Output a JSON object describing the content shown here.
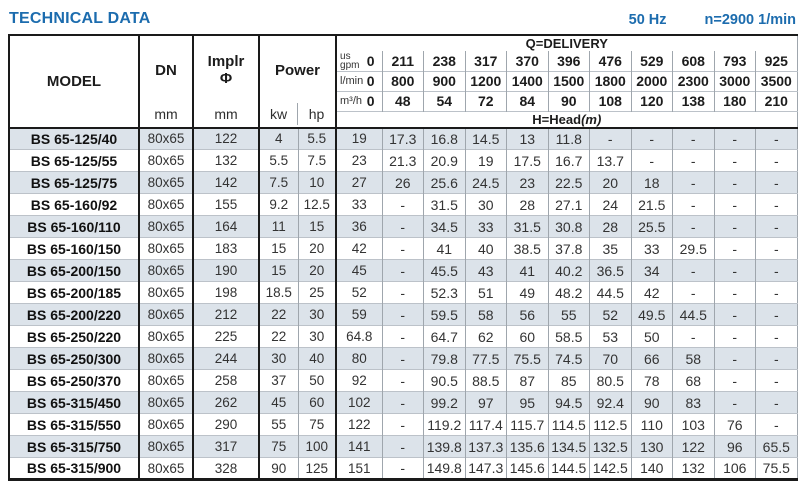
{
  "header": {
    "title": "TECHNICAL DATA",
    "frequency": "50 Hz",
    "speed": "n=2900 1/min"
  },
  "colors": {
    "accent_blue": "#1c6cae",
    "row_shade": "#dce3ea"
  },
  "table": {
    "col_model": "MODEL",
    "col_dn": "DN",
    "col_implr_line1": "Implr",
    "col_implr_line2": "Φ",
    "unit_mm": "mm",
    "col_power": "Power",
    "unit_kw": "kw",
    "unit_hp": "hp",
    "delivery": {
      "title": "Q=DELIVERY",
      "head_label": "H=Head",
      "head_unit": "(m)",
      "rows": [
        {
          "unit_top": "us",
          "unit": "gpm",
          "zero": "0",
          "values": [
            "211",
            "238",
            "317",
            "370",
            "396",
            "476",
            "529",
            "608",
            "793",
            "925"
          ]
        },
        {
          "unit": "l/min",
          "zero": "0",
          "values": [
            "800",
            "900",
            "1200",
            "1400",
            "1500",
            "1800",
            "2000",
            "2300",
            "3000",
            "3500"
          ]
        },
        {
          "unit": "m³/h",
          "zero": "0",
          "values": [
            "48",
            "54",
            "72",
            "84",
            "90",
            "108",
            "120",
            "138",
            "180",
            "210"
          ]
        }
      ]
    },
    "rows": [
      {
        "model": "BS 65-125/40",
        "dn": "80x65",
        "implr": "122",
        "kw": "4",
        "hp": "5.5",
        "head": [
          "19",
          "17.3",
          "16.8",
          "14.5",
          "13",
          "11.8",
          "-",
          "-",
          "-",
          "-",
          "-"
        ]
      },
      {
        "model": "BS 65-125/55",
        "dn": "80x65",
        "implr": "132",
        "kw": "5.5",
        "hp": "7.5",
        "head": [
          "23",
          "21.3",
          "20.9",
          "19",
          "17.5",
          "16.7",
          "13.7",
          "-",
          "-",
          "-",
          "-"
        ]
      },
      {
        "model": "BS 65-125/75",
        "dn": "80x65",
        "implr": "142",
        "kw": "7.5",
        "hp": "10",
        "head": [
          "27",
          "26",
          "25.6",
          "24.5",
          "23",
          "22.5",
          "20",
          "18",
          "-",
          "-",
          "-"
        ]
      },
      {
        "model": "BS 65-160/92",
        "dn": "80x65",
        "implr": "155",
        "kw": "9.2",
        "hp": "12.5",
        "head": [
          "33",
          "-",
          "31.5",
          "30",
          "28",
          "27.1",
          "24",
          "21.5",
          "-",
          "-",
          "-"
        ]
      },
      {
        "model": "BS 65-160/110",
        "dn": "80x65",
        "implr": "164",
        "kw": "11",
        "hp": "15",
        "head": [
          "36",
          "-",
          "34.5",
          "33",
          "31.5",
          "30.8",
          "28",
          "25.5",
          "-",
          "-",
          "-"
        ]
      },
      {
        "model": "BS 65-160/150",
        "dn": "80x65",
        "implr": "183",
        "kw": "15",
        "hp": "20",
        "head": [
          "42",
          "-",
          "41",
          "40",
          "38.5",
          "37.8",
          "35",
          "33",
          "29.5",
          "-",
          "-"
        ]
      },
      {
        "model": "BS 65-200/150",
        "dn": "80x65",
        "implr": "190",
        "kw": "15",
        "hp": "20",
        "head": [
          "45",
          "-",
          "45.5",
          "43",
          "41",
          "40.2",
          "36.5",
          "34",
          "-",
          "-",
          "-"
        ]
      },
      {
        "model": "BS 65-200/185",
        "dn": "80x65",
        "implr": "198",
        "kw": "18.5",
        "hp": "25",
        "head": [
          "52",
          "-",
          "52.3",
          "51",
          "49",
          "48.2",
          "44.5",
          "42",
          "-",
          "-",
          "-"
        ]
      },
      {
        "model": "BS 65-200/220",
        "dn": "80x65",
        "implr": "212",
        "kw": "22",
        "hp": "30",
        "head": [
          "59",
          "-",
          "59.5",
          "58",
          "56",
          "55",
          "52",
          "49.5",
          "44.5",
          "-",
          "-"
        ]
      },
      {
        "model": "BS 65-250/220",
        "dn": "80x65",
        "implr": "225",
        "kw": "22",
        "hp": "30",
        "head": [
          "64.8",
          "-",
          "64.7",
          "62",
          "60",
          "58.5",
          "53",
          "50",
          "-",
          "-",
          "-"
        ]
      },
      {
        "model": "BS 65-250/300",
        "dn": "80x65",
        "implr": "244",
        "kw": "30",
        "hp": "40",
        "head": [
          "80",
          "-",
          "79.8",
          "77.5",
          "75.5",
          "74.5",
          "70",
          "66",
          "58",
          "-",
          "-"
        ]
      },
      {
        "model": "BS 65-250/370",
        "dn": "80x65",
        "implr": "258",
        "kw": "37",
        "hp": "50",
        "head": [
          "92",
          "-",
          "90.5",
          "88.5",
          "87",
          "85",
          "80.5",
          "78",
          "68",
          "-",
          "-"
        ]
      },
      {
        "model": "BS 65-315/450",
        "dn": "80x65",
        "implr": "262",
        "kw": "45",
        "hp": "60",
        "head": [
          "102",
          "-",
          "99.2",
          "97",
          "95",
          "94.5",
          "92.4",
          "90",
          "83",
          "-",
          "-"
        ]
      },
      {
        "model": "BS 65-315/550",
        "dn": "80x65",
        "implr": "290",
        "kw": "55",
        "hp": "75",
        "head": [
          "122",
          "-",
          "119.2",
          "117.4",
          "115.7",
          "114.5",
          "112.5",
          "110",
          "103",
          "76",
          "-"
        ]
      },
      {
        "model": "BS 65-315/750",
        "dn": "80x65",
        "implr": "317",
        "kw": "75",
        "hp": "100",
        "head": [
          "141",
          "-",
          "139.8",
          "137.3",
          "135.6",
          "134.5",
          "132.5",
          "130",
          "122",
          "96",
          "65.5"
        ]
      },
      {
        "model": "BS 65-315/900",
        "dn": "80x65",
        "implr": "328",
        "kw": "90",
        "hp": "125",
        "head": [
          "151",
          "-",
          "149.8",
          "147.3",
          "145.6",
          "144.5",
          "142.5",
          "140",
          "132",
          "106",
          "75.5"
        ]
      }
    ]
  }
}
